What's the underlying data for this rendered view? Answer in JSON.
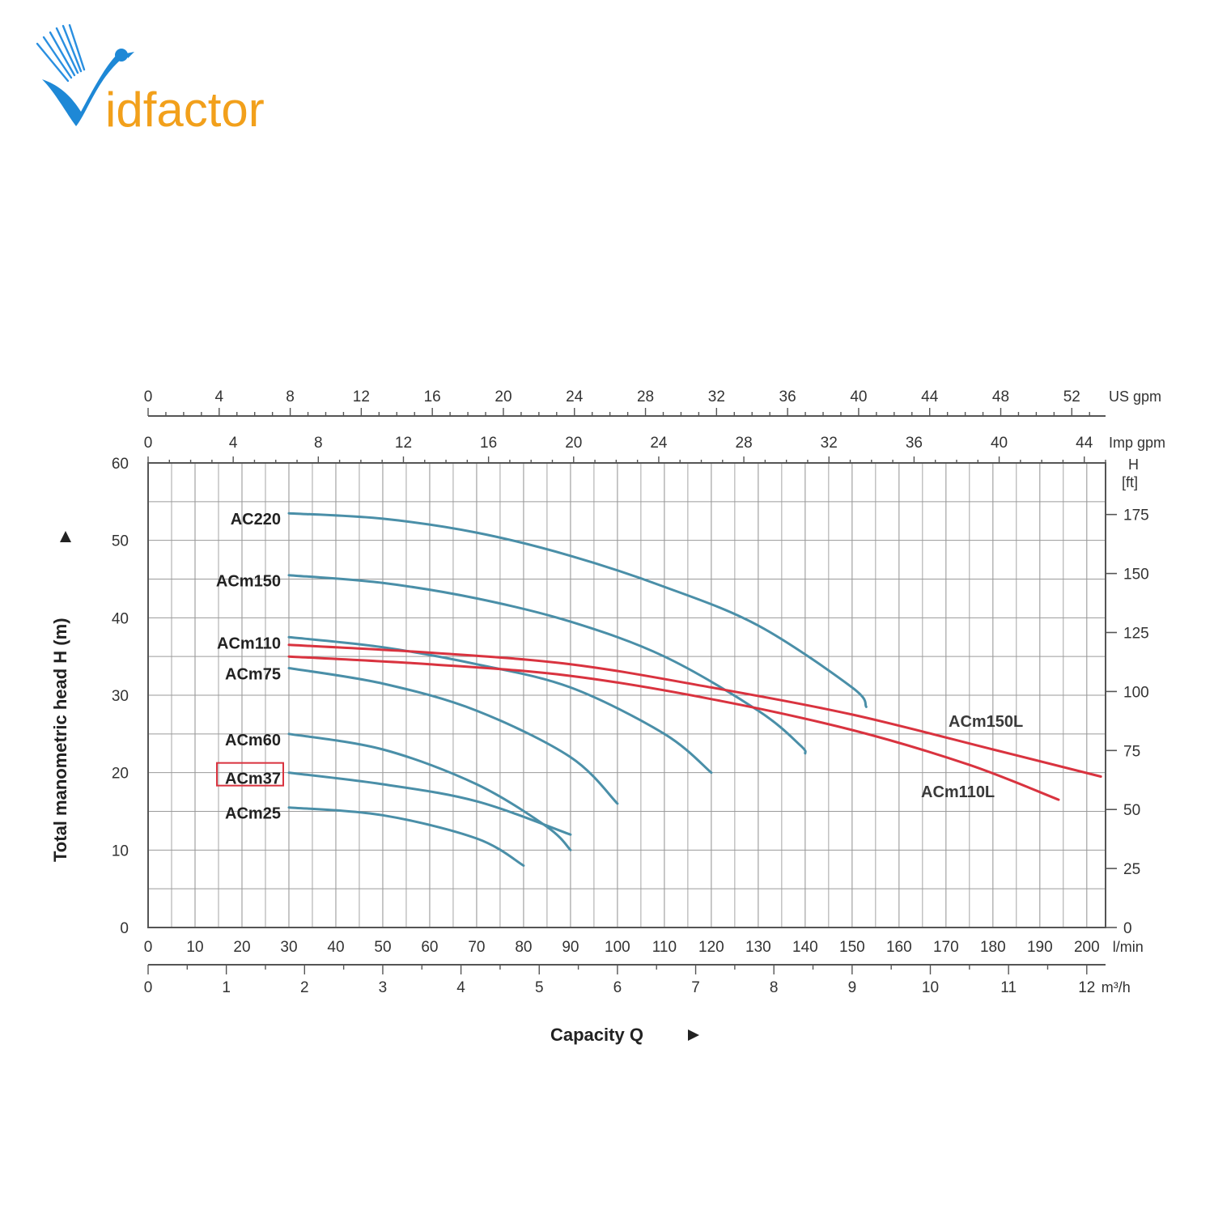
{
  "brand": {
    "name": "Vidfactor",
    "text_part": "idfactor",
    "color_blue": "#1e88d6",
    "color_orange": "#f2a01b"
  },
  "chart_data": {
    "type": "line",
    "title": "",
    "xlabel": "Capacity Q",
    "ylabel": "Total manometric head H (m)",
    "xlim": [
      0,
      204
    ],
    "ylim": [
      0,
      60
    ],
    "x_unit": "l/min",
    "grid": true,
    "x_ticks": [
      0,
      10,
      20,
      30,
      40,
      50,
      60,
      70,
      80,
      90,
      100,
      110,
      120,
      130,
      140,
      150,
      160,
      170,
      180,
      190,
      200
    ],
    "y_ticks": [
      0,
      10,
      20,
      30,
      40,
      50,
      60
    ],
    "secondary_axes": {
      "us_gpm": {
        "unit": "US gpm",
        "ticks": [
          0,
          4,
          8,
          12,
          16,
          20,
          24,
          28,
          32,
          36,
          40,
          44,
          48,
          52
        ]
      },
      "imp_gpm": {
        "unit": "Imp gpm",
        "ticks": [
          0,
          4,
          8,
          12,
          16,
          20,
          24,
          28,
          32,
          36,
          40,
          44
        ]
      },
      "m3h": {
        "unit": "m³/h",
        "ticks": [
          0,
          1,
          2,
          3,
          4,
          5,
          6,
          7,
          8,
          9,
          10,
          11,
          12
        ]
      },
      "head_ft": {
        "unit_top": "H",
        "unit_bottom": "[ft]",
        "ticks": [
          0,
          25,
          50,
          75,
          100,
          125,
          150,
          175
        ]
      }
    },
    "series": [
      {
        "name": "AC220",
        "color": "#4a8fa8",
        "points": [
          [
            30,
            53.5
          ],
          [
            50,
            52.8
          ],
          [
            70,
            51
          ],
          [
            90,
            48
          ],
          [
            110,
            44
          ],
          [
            130,
            39
          ],
          [
            150,
            31
          ],
          [
            153,
            28.5
          ]
        ]
      },
      {
        "name": "ACm150",
        "color": "#4a8fa8",
        "points": [
          [
            30,
            45.5
          ],
          [
            50,
            44.5
          ],
          [
            70,
            42.5
          ],
          [
            90,
            39.5
          ],
          [
            110,
            35
          ],
          [
            130,
            28
          ],
          [
            139,
            23.5
          ],
          [
            140,
            22.5
          ]
        ]
      },
      {
        "name": "ACm110",
        "color": "#4a8fa8",
        "points": [
          [
            30,
            37.5
          ],
          [
            50,
            36.2
          ],
          [
            70,
            34
          ],
          [
            90,
            31
          ],
          [
            110,
            25
          ],
          [
            120,
            20
          ]
        ]
      },
      {
        "name": "ACm75",
        "color": "#4a8fa8",
        "points": [
          [
            30,
            33.5
          ],
          [
            50,
            31.5
          ],
          [
            70,
            28
          ],
          [
            90,
            22
          ],
          [
            100,
            16
          ]
        ]
      },
      {
        "name": "ACm60",
        "color": "#4a8fa8",
        "points": [
          [
            30,
            25
          ],
          [
            50,
            23
          ],
          [
            70,
            18.5
          ],
          [
            85,
            13
          ],
          [
            90,
            10
          ]
        ]
      },
      {
        "name": "ACm37",
        "color": "#4a8fa8",
        "highlighted": true,
        "points": [
          [
            30,
            20
          ],
          [
            50,
            18.5
          ],
          [
            70,
            16.3
          ],
          [
            90,
            12
          ]
        ]
      },
      {
        "name": "ACm25",
        "color": "#4a8fa8",
        "points": [
          [
            30,
            15.5
          ],
          [
            50,
            14.5
          ],
          [
            70,
            11.5
          ],
          [
            80,
            8
          ]
        ]
      },
      {
        "name": "ACm150L",
        "color": "#d9333f",
        "points": [
          [
            30,
            36.5
          ],
          [
            60,
            35.5
          ],
          [
            90,
            34
          ],
          [
            120,
            31
          ],
          [
            150,
            27.5
          ],
          [
            180,
            23
          ],
          [
            203,
            19.5
          ]
        ]
      },
      {
        "name": "ACm110L",
        "color": "#d9333f",
        "points": [
          [
            30,
            35
          ],
          [
            60,
            34
          ],
          [
            90,
            32.5
          ],
          [
            120,
            29.5
          ],
          [
            150,
            25.5
          ],
          [
            175,
            21
          ],
          [
            194,
            16.5
          ]
        ]
      }
    ]
  }
}
